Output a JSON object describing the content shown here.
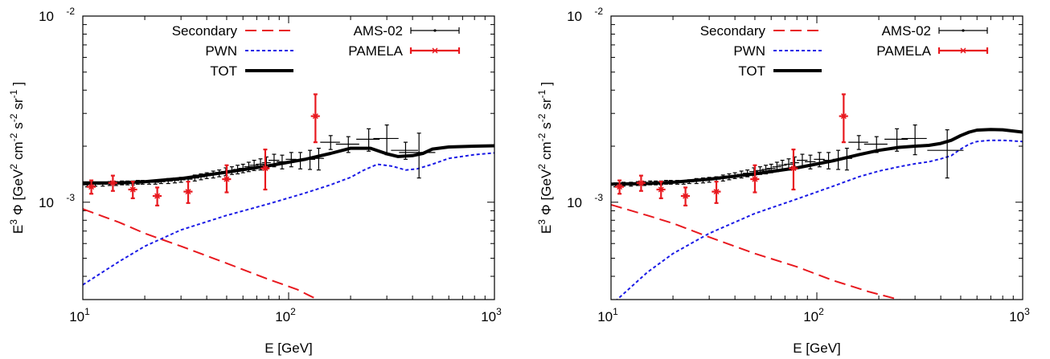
{
  "chart_data": [
    {
      "type": "line",
      "xlabel": "E [GeV]",
      "ylabel": "E",
      "ylabel_parts": {
        "exp3": "3",
        "phi": "Φ",
        "open": "[GeV",
        "sq": "2",
        "cm": "cm",
        "cmexp": "-2",
        "s": "s",
        "sexp": "-2",
        "sr": "sr",
        "srexp": "-1",
        "close": "]"
      },
      "xscale": "log",
      "yscale": "log",
      "xlim": [
        10,
        1000
      ],
      "ylim": [
        0.0003,
        0.01
      ],
      "x_ticks": [
        {
          "base": "10",
          "exp": "1",
          "value": 10
        },
        {
          "base": "10",
          "exp": "2",
          "value": 100
        },
        {
          "base": "10",
          "exp": "3",
          "value": 1000
        }
      ],
      "y_ticks": [
        {
          "base": "10",
          "exp": "-3",
          "value": 0.001
        },
        {
          "base": "10",
          "exp": "-2",
          "value": 0.01
        }
      ],
      "legend_placement": "top",
      "series": [
        {
          "name": "Secondary",
          "style": "dashed",
          "color": "#e8191f",
          "x": [
            10,
            15,
            20,
            30,
            50,
            80,
            110,
            130,
            160
          ],
          "y": [
            0.00092,
            0.00078,
            0.00068,
            0.00058,
            0.00047,
            0.000385,
            0.00034,
            0.00031,
            0.00028
          ]
        },
        {
          "name": "PWN",
          "style": "dotted",
          "color": "#1a1ae6",
          "x": [
            10,
            15,
            20,
            30,
            50,
            80,
            120,
            160,
            200,
            230,
            270,
            320,
            370,
            420,
            500,
            600,
            800,
            1000
          ],
          "y": [
            0.00036,
            0.00048,
            0.00058,
            0.00071,
            0.00085,
            0.00098,
            0.00112,
            0.00124,
            0.00136,
            0.00148,
            0.0016,
            0.00156,
            0.00149,
            0.00151,
            0.0016,
            0.00172,
            0.0018,
            0.00184
          ]
        },
        {
          "name": "TOT",
          "style": "solid-thick",
          "color": "#000000",
          "x": [
            10,
            15,
            20,
            30,
            50,
            80,
            120,
            160,
            200,
            250,
            300,
            340,
            400,
            450,
            500,
            600,
            800,
            1000
          ],
          "y": [
            0.00127,
            0.00127,
            0.00129,
            0.00134,
            0.00145,
            0.00157,
            0.0017,
            0.00183,
            0.00195,
            0.00195,
            0.00182,
            0.00176,
            0.00178,
            0.00183,
            0.00193,
            0.00198,
            0.002,
            0.00201
          ]
        },
        {
          "name": "AMS-02",
          "type": "errorbar",
          "color": "#000000",
          "x": [
            10.5,
            11.5,
            12.5,
            13.5,
            14.5,
            15.5,
            16.5,
            17.5,
            18.5,
            19.5,
            21,
            22.5,
            24,
            26,
            28,
            30,
            32.5,
            35,
            37.5,
            40,
            43,
            46,
            49.5,
            53,
            56.5,
            60,
            64,
            68,
            73,
            78,
            85,
            93,
            103,
            114,
            127,
            140,
            160,
            195,
            245,
            300,
            370,
            430
          ],
          "y": [
            0.00124,
            0.00125,
            0.00125,
            0.00126,
            0.00126,
            0.00127,
            0.00127,
            0.00127,
            0.00128,
            0.00128,
            0.00128,
            0.00128,
            0.00129,
            0.0013,
            0.00131,
            0.00132,
            0.00133,
            0.00135,
            0.00137,
            0.00139,
            0.00141,
            0.00143,
            0.00146,
            0.00148,
            0.0015,
            0.00152,
            0.00155,
            0.00158,
            0.0016,
            0.00163,
            0.00168,
            0.00165,
            0.0017,
            0.00168,
            0.0017,
            0.00172,
            0.0021,
            0.00205,
            0.00218,
            0.0022,
            0.0019,
            0.00185
          ],
          "yerr": [
            3e-05,
            3e-05,
            3e-05,
            3e-05,
            3e-05,
            3e-05,
            3e-05,
            3e-05,
            3e-05,
            3e-05,
            3e-05,
            3e-05,
            3e-05,
            4e-05,
            4e-05,
            4e-05,
            4e-05,
            5e-05,
            5e-05,
            5e-05,
            6e-05,
            6e-05,
            7e-05,
            7e-05,
            8e-05,
            8e-05,
            9e-05,
            0.0001,
            0.00011,
            0.00012,
            0.00013,
            0.00014,
            0.00015,
            0.00017,
            0.0002,
            0.00023,
            0.00018,
            0.0002,
            0.0003,
            0.0004,
            0.0002,
            0.0005
          ],
          "xerr_rel": [
            0.05,
            0.05,
            0.05,
            0.05,
            0.05,
            0.05,
            0.05,
            0.05,
            0.05,
            0.05,
            0.05,
            0.05,
            0.05,
            0.05,
            0.05,
            0.05,
            0.05,
            0.05,
            0.05,
            0.05,
            0.05,
            0.05,
            0.05,
            0.05,
            0.05,
            0.05,
            0.05,
            0.05,
            0.05,
            0.05,
            0.06,
            0.06,
            0.06,
            0.06,
            0.06,
            0.06,
            0.11,
            0.13,
            0.13,
            0.14,
            0.15,
            0.2
          ]
        },
        {
          "name": "PAMELA",
          "type": "errorbar",
          "color": "#e8191f",
          "x": [
            11,
            14,
            17.5,
            23,
            32.5,
            50,
            77,
            135
          ],
          "y": [
            0.00121,
            0.00127,
            0.00117,
            0.00108,
            0.00114,
            0.00133,
            0.00152,
            0.0029
          ],
          "yerr_low": [
            0.0001,
            0.00012,
            0.00012,
            0.00012,
            0.00015,
            0.0002,
            0.00035,
            0.0008
          ],
          "yerr_high": [
            0.0001,
            0.00012,
            0.00012,
            0.00012,
            0.00015,
            0.00025,
            0.0004,
            0.0009
          ],
          "xerr_rel": [
            0.05,
            0.05,
            0.05,
            0.05,
            0.05,
            0.05,
            0.05,
            0.05
          ]
        }
      ]
    },
    {
      "type": "line",
      "xlabel": "E [GeV]",
      "ylabel": "E",
      "ylabel_parts": {
        "exp3": "3",
        "phi": "Φ",
        "open": "[GeV",
        "sq": "2",
        "cm": "cm",
        "cmexp": "-2",
        "s": "s",
        "sexp": "-2",
        "sr": "sr",
        "srexp": "-1",
        "close": "]"
      },
      "xscale": "log",
      "yscale": "log",
      "xlim": [
        10,
        1000
      ],
      "ylim": [
        0.0003,
        0.01
      ],
      "x_ticks": [
        {
          "base": "10",
          "exp": "1",
          "value": 10
        },
        {
          "base": "10",
          "exp": "2",
          "value": 100
        },
        {
          "base": "10",
          "exp": "3",
          "value": 1000
        }
      ],
      "y_ticks": [
        {
          "base": "10",
          "exp": "-3",
          "value": 0.001
        },
        {
          "base": "10",
          "exp": "-2",
          "value": 0.01
        }
      ],
      "legend_placement": "top",
      "series": [
        {
          "name": "Secondary",
          "style": "dashed",
          "color": "#e8191f",
          "x": [
            10,
            15,
            20,
            30,
            50,
            80,
            120,
            180,
            250,
            350
          ],
          "y": [
            0.00097,
            0.00085,
            0.00077,
            0.00065,
            0.00053,
            0.00045,
            0.00038,
            0.00033,
            0.0003,
            0.00027
          ]
        },
        {
          "name": "PWN",
          "style": "dotted",
          "color": "#1a1ae6",
          "x": [
            10,
            15,
            20,
            30,
            50,
            80,
            120,
            160,
            200,
            250,
            300,
            350,
            400,
            450,
            500,
            550,
            600,
            700,
            800,
            1000
          ],
          "y": [
            0.00028,
            0.00042,
            0.00053,
            0.00068,
            0.00087,
            0.00104,
            0.00122,
            0.00137,
            0.00147,
            0.00155,
            0.00161,
            0.00165,
            0.00171,
            0.00178,
            0.00193,
            0.00205,
            0.00212,
            0.00215,
            0.00215,
            0.00212
          ]
        },
        {
          "name": "TOT",
          "style": "solid-thick",
          "color": "#000000",
          "x": [
            10,
            15,
            20,
            30,
            50,
            80,
            120,
            160,
            200,
            250,
            300,
            350,
            400,
            450,
            500,
            550,
            600,
            700,
            800,
            1000
          ],
          "y": [
            0.00125,
            0.00126,
            0.00128,
            0.00133,
            0.00142,
            0.00153,
            0.00167,
            0.0018,
            0.0019,
            0.00197,
            0.002,
            0.00202,
            0.00207,
            0.00215,
            0.00228,
            0.00238,
            0.00244,
            0.00246,
            0.00245,
            0.00238
          ]
        },
        {
          "name": "AMS-02",
          "type": "errorbar",
          "color": "#000000",
          "x": [
            10.5,
            11.5,
            12.5,
            13.5,
            14.5,
            15.5,
            16.5,
            17.5,
            18.5,
            19.5,
            21,
            22.5,
            24,
            26,
            28,
            30,
            32.5,
            35,
            37.5,
            40,
            43,
            46,
            49.5,
            53,
            56.5,
            60,
            64,
            68,
            73,
            78,
            85,
            93,
            103,
            114,
            127,
            140,
            160,
            195,
            245,
            300,
            430
          ],
          "y": [
            0.00124,
            0.00125,
            0.00125,
            0.00126,
            0.00126,
            0.00127,
            0.00127,
            0.00127,
            0.00128,
            0.00128,
            0.00128,
            0.00128,
            0.00129,
            0.0013,
            0.00131,
            0.00132,
            0.00133,
            0.00135,
            0.00137,
            0.00139,
            0.00141,
            0.00143,
            0.00146,
            0.00148,
            0.0015,
            0.00152,
            0.00155,
            0.00158,
            0.0016,
            0.00163,
            0.00168,
            0.00165,
            0.0017,
            0.00168,
            0.0017,
            0.00172,
            0.0021,
            0.00205,
            0.00218,
            0.0022,
            0.0019
          ],
          "yerr": [
            3e-05,
            3e-05,
            3e-05,
            3e-05,
            3e-05,
            3e-05,
            3e-05,
            3e-05,
            3e-05,
            3e-05,
            3e-05,
            3e-05,
            3e-05,
            4e-05,
            4e-05,
            4e-05,
            4e-05,
            5e-05,
            5e-05,
            5e-05,
            6e-05,
            6e-05,
            7e-05,
            7e-05,
            8e-05,
            8e-05,
            9e-05,
            0.0001,
            0.00011,
            0.00012,
            0.00013,
            0.00014,
            0.00015,
            0.00017,
            0.0002,
            0.00023,
            0.00018,
            0.0002,
            0.0003,
            0.0004,
            0.00055
          ],
          "xerr_rel": [
            0.05,
            0.05,
            0.05,
            0.05,
            0.05,
            0.05,
            0.05,
            0.05,
            0.05,
            0.05,
            0.05,
            0.05,
            0.05,
            0.05,
            0.05,
            0.05,
            0.05,
            0.05,
            0.05,
            0.05,
            0.05,
            0.05,
            0.05,
            0.05,
            0.05,
            0.05,
            0.05,
            0.05,
            0.05,
            0.05,
            0.06,
            0.06,
            0.06,
            0.06,
            0.06,
            0.06,
            0.11,
            0.13,
            0.13,
            0.14,
            0.2
          ]
        },
        {
          "name": "PAMELA",
          "type": "errorbar",
          "color": "#e8191f",
          "x": [
            11,
            14,
            17.5,
            23,
            32.5,
            50,
            77,
            135
          ],
          "y": [
            0.00121,
            0.00127,
            0.00117,
            0.00108,
            0.00114,
            0.00133,
            0.00152,
            0.0029
          ],
          "yerr_low": [
            0.0001,
            0.00012,
            0.00012,
            0.00012,
            0.00015,
            0.0002,
            0.00035,
            0.0008
          ],
          "yerr_high": [
            0.0001,
            0.00012,
            0.00012,
            0.00012,
            0.00015,
            0.00025,
            0.0004,
            0.0009
          ],
          "xerr_rel": [
            0.05,
            0.05,
            0.05,
            0.05,
            0.05,
            0.05,
            0.05,
            0.05
          ]
        }
      ]
    }
  ]
}
